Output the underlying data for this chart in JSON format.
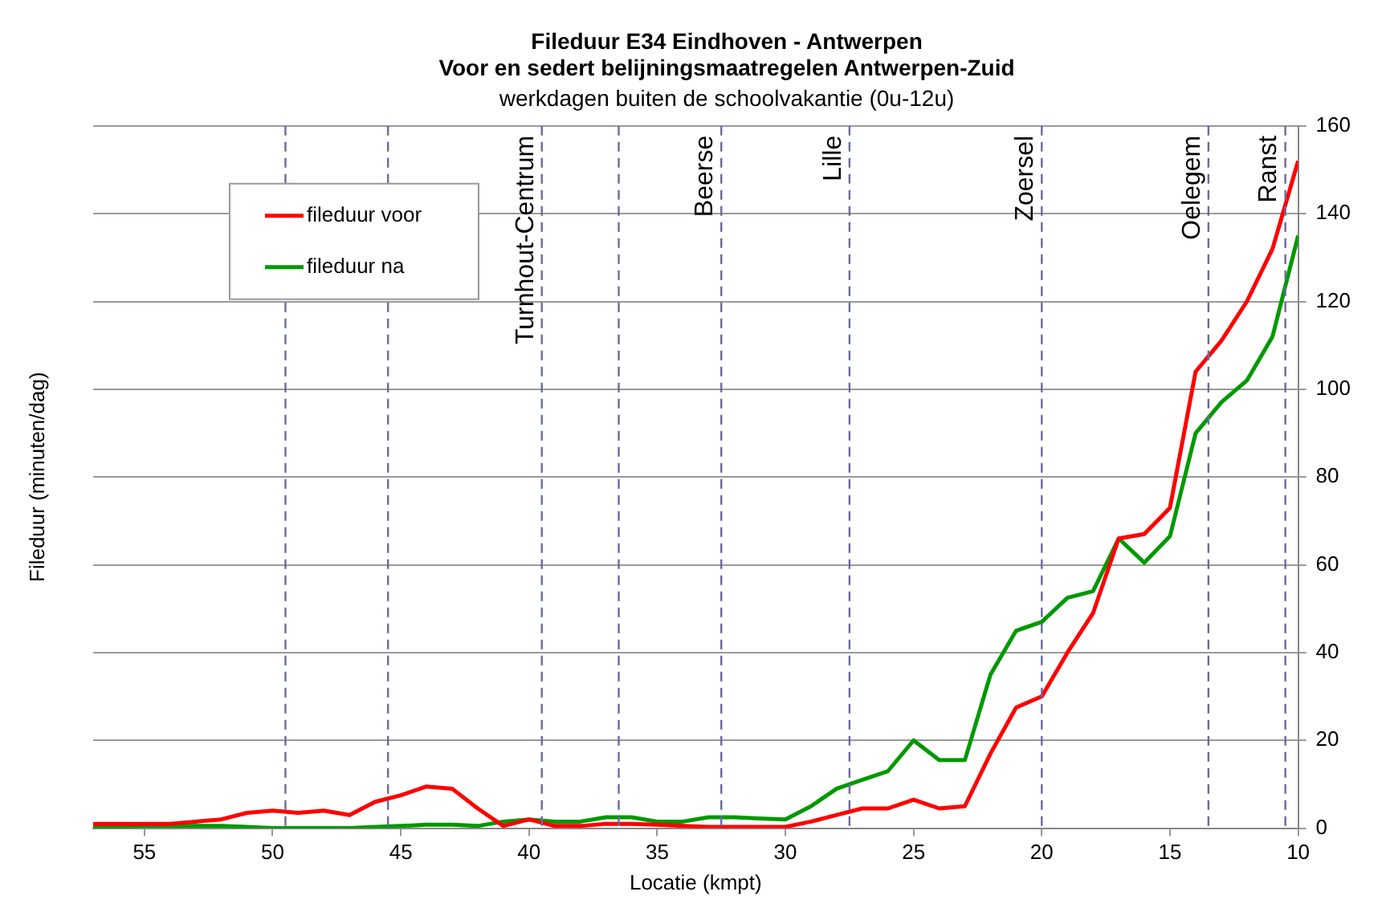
{
  "chart_data": {
    "type": "line",
    "title": "Fileduur E34 Eindhoven - Antwerpen",
    "subtitle": "Voor en sedert belijningsmaatregelen Antwerpen-Zuid",
    "annotations": [
      "werkdagen buiten de schoolvakantie (0u-12u)"
    ],
    "xlabel": "Locatie (kmpt)",
    "ylabel": "Fileduur (minuten/dag)",
    "x": [
      57,
      56,
      55,
      54,
      53,
      52,
      51,
      50,
      49,
      48,
      47,
      46,
      45,
      44,
      43,
      42,
      41,
      40,
      39,
      38,
      37,
      36,
      35,
      34,
      33,
      32,
      31,
      30,
      29,
      28,
      27,
      26,
      25,
      24,
      23,
      22,
      21,
      20,
      19,
      18,
      17,
      16,
      15,
      14,
      13,
      12,
      11,
      10
    ],
    "series": [
      {
        "name": "fileduur voor",
        "color": "#ff0000",
        "values": [
          1,
          1,
          1,
          1,
          1.5,
          2,
          3.5,
          4,
          3.5,
          4,
          3,
          6,
          7.5,
          9.5,
          9,
          4.5,
          0.5,
          2,
          0.5,
          0.5,
          1,
          1,
          0.8,
          0.5,
          0.3,
          0.3,
          0.3,
          0.3,
          1.5,
          3,
          4.5,
          4.5,
          6.5,
          4.5,
          5,
          17,
          27.5,
          30,
          40,
          49,
          66,
          67,
          73,
          104,
          111,
          120,
          132,
          152
        ]
      },
      {
        "name": "fileduur na",
        "color": "#009900",
        "values": [
          0.3,
          0.3,
          0.5,
          0.5,
          0.5,
          0.5,
          0.3,
          0,
          0,
          0,
          0,
          0.3,
          0.5,
          0.8,
          0.8,
          0.5,
          1.5,
          2,
          1.5,
          1.5,
          2.5,
          2.5,
          1.5,
          1.5,
          2.5,
          2.5,
          2.2,
          2,
          5,
          9,
          11,
          13,
          20,
          15.5,
          15.5,
          35,
          45,
          47,
          52.5,
          54,
          66,
          60.5,
          66.5,
          90,
          97,
          102,
          112,
          135
        ]
      }
    ],
    "xlim": [
      57,
      10
    ],
    "xticks": [
      55,
      50,
      45,
      40,
      35,
      30,
      25,
      20,
      15,
      10
    ],
    "ylim": [
      0,
      160
    ],
    "yticks": [
      0,
      20,
      40,
      60,
      80,
      100,
      120,
      140,
      160
    ],
    "ref_lines": [
      {
        "axis": "x",
        "value": 49.5,
        "color": "#6a6aa0",
        "line_style": "dashed"
      },
      {
        "axis": "x",
        "value": 45.5,
        "color": "#6a6aa0",
        "line_style": "dashed"
      },
      {
        "axis": "x",
        "value": 39.5,
        "label": "Turnhout-Centrum",
        "color": "#6a6aa0",
        "line_style": "dashed"
      },
      {
        "axis": "x",
        "value": 36.5,
        "color": "#6a6aa0",
        "line_style": "dashed"
      },
      {
        "axis": "x",
        "value": 32.5,
        "label": "Beerse",
        "color": "#6a6aa0",
        "line_style": "dashed"
      },
      {
        "axis": "x",
        "value": 27.5,
        "label": "Lille",
        "color": "#6a6aa0",
        "line_style": "dashed"
      },
      {
        "axis": "x",
        "value": 20,
        "label": "Zoersel",
        "color": "#6a6aa0",
        "line_style": "dashed"
      },
      {
        "axis": "x",
        "value": 13.5,
        "label": "Oelegem",
        "color": "#6a6aa0",
        "line_style": "dashed"
      },
      {
        "axis": "x",
        "value": 10.5,
        "label": "Ranst",
        "color": "#6a6aa0",
        "line_style": "dashed"
      }
    ],
    "grid": "y",
    "legend": "top left",
    "marker": "none",
    "line_style": "solid"
  }
}
